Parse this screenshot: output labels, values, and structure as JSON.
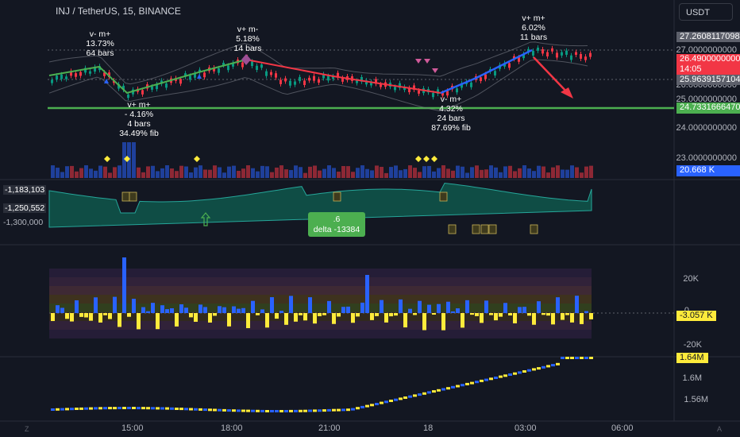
{
  "header": {
    "symbol": "INJ / TetherUS, 15, BINANCE",
    "currency": "USDT"
  },
  "price_scale": {
    "labels": [
      "27.0000000000",
      "26.0000000000",
      "25.0000000000",
      "24.0000000000",
      "23.0000000000"
    ],
    "badges": {
      "high": "27.2608117098",
      "last_price": "26.4900000000",
      "countdown": "14:05",
      "low": "25.9639157104",
      "support": "24.7331666470",
      "volume": "20.668 K"
    }
  },
  "annotations": {
    "a1": {
      "l1": "v- m+",
      "l2": "13.73%",
      "l3": "64 bars"
    },
    "a2": {
      "l1": "v+ m-",
      "l2": "5.18%",
      "l3": "14 bars"
    },
    "a3": {
      "l1": "v+ m+",
      "l2": "6.02%",
      "l3": "11 bars"
    },
    "a4": {
      "l1": "v+ m+",
      "l2": "- 4.16%",
      "l3": "4 bars",
      "l4": "34.49% fib"
    },
    "a5": {
      "l1": "v- m+",
      "l2": "4.32%",
      "l3": "24 bars",
      "l4": "87.69% fib"
    }
  },
  "cvd_panel": {
    "labels": [
      "-1,183,103",
      "-1,250,552",
      "-1,300,000"
    ],
    "delta_tooltip": {
      "l1": ".6",
      "l2": "delta -13384"
    }
  },
  "delta_panel": {
    "labels": [
      "20K",
      "0",
      "-20K"
    ],
    "badge": "-3.057 K"
  },
  "bottom_panel": {
    "labels": [
      "1.6M",
      "1.56M"
    ],
    "badge": "1.64M"
  },
  "time_axis": {
    "labels": [
      "15:00",
      "18:00",
      "21:00",
      "18",
      "03:00",
      "06:00"
    ]
  },
  "colors": {
    "bg": "#131722",
    "up": "#089981",
    "down": "#f23645",
    "blue": "#2962ff",
    "yellow": "#ffeb3b",
    "green": "#4caf50"
  }
}
